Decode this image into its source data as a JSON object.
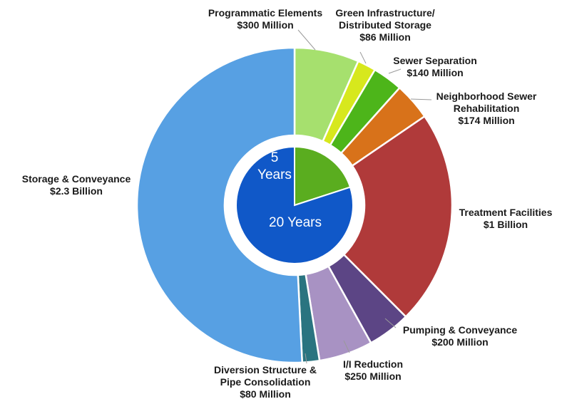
{
  "chart_data": {
    "type": "pie",
    "variant": "donut with inner pie",
    "outer_ring": {
      "unit": "million USD",
      "slices": [
        {
          "label_lines": [
            "Programmatic Elements",
            "$300 Million"
          ],
          "value": 300,
          "color": "#a6e06e"
        },
        {
          "label_lines": [
            "Green Infrastructure/",
            "Distributed Storage",
            "$86 Million"
          ],
          "value": 86,
          "color": "#d7e81d"
        },
        {
          "label_lines": [
            "Sewer Separation",
            "$140 Million"
          ],
          "value": 140,
          "color": "#4db51a"
        },
        {
          "label_lines": [
            "Neighborhood Sewer",
            "Rehabilitation",
            "$174 Million"
          ],
          "value": 174,
          "color": "#d8721a"
        },
        {
          "label_lines": [
            "Treatment Facilities",
            "$1 Billion"
          ],
          "value": 1000,
          "color": "#b03a3a"
        },
        {
          "label_lines": [
            "Pumping & Conveyance",
            "$200 Million"
          ],
          "value": 200,
          "color": "#5c4585"
        },
        {
          "label_lines": [
            "I/I Reduction",
            "$250 Million"
          ],
          "value": 250,
          "color": "#a892c3"
        },
        {
          "label_lines": [
            "Diversion Structure &",
            "Pipe Consolidation",
            "$80 Million"
          ],
          "value": 80,
          "color": "#2a7480"
        },
        {
          "label_lines": [
            "Storage & Conveyance",
            "$2.3 Billion"
          ],
          "value": 2300,
          "color": "#57a0e3"
        }
      ]
    },
    "inner_pie": {
      "slices": [
        {
          "label_lines": [
            "5",
            "Years"
          ],
          "value": 5,
          "color": "#5aad1f"
        },
        {
          "label_lines": [
            "20 Years"
          ],
          "value": 20,
          "color": "#1058c8"
        }
      ]
    },
    "legend": "none (labels with leader lines)"
  }
}
